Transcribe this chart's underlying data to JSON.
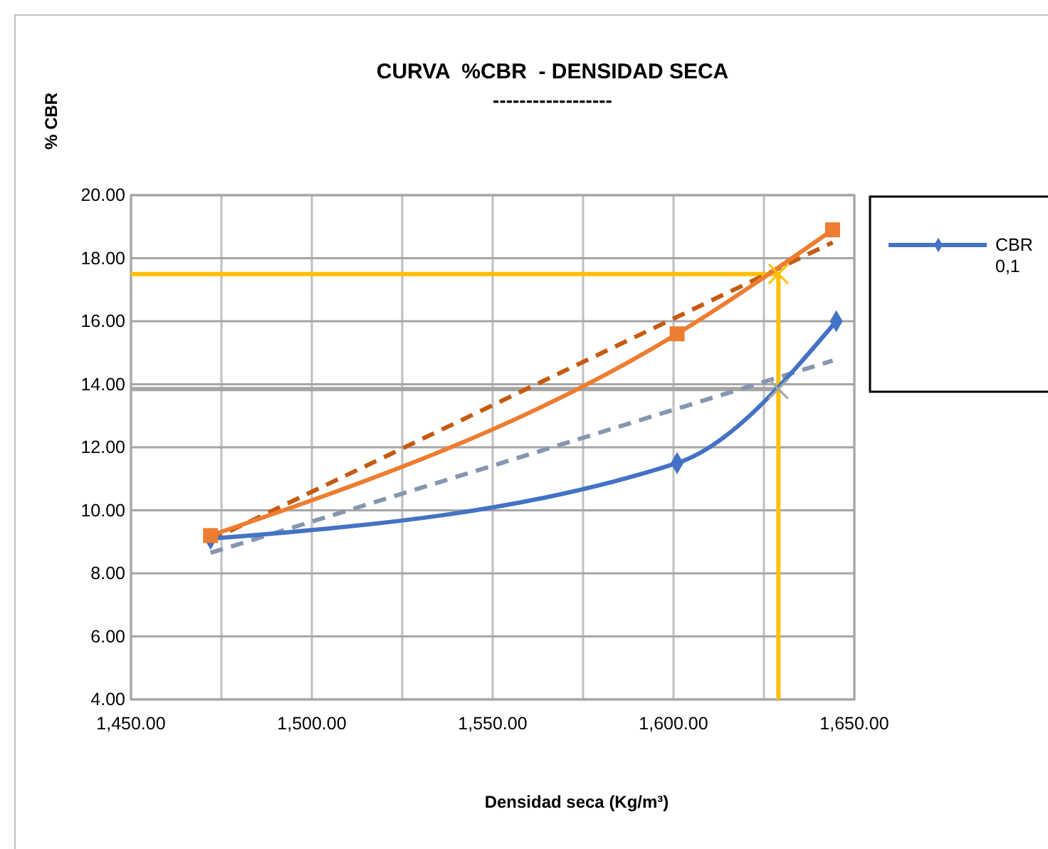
{
  "chart_data": {
    "type": "line",
    "title": "CURVA  %CBR  - DENSIDAD SECA",
    "subtitle": "------------------",
    "xlabel": "Densidad seca (Kg/m³)",
    "ylabel": "% CBR",
    "xlim": [
      1450,
      1650
    ],
    "xticks": [
      {
        "value": 1450,
        "label": "1,450.00"
      },
      {
        "value": 1475,
        "label": null
      },
      {
        "value": 1500,
        "label": "1,500.00"
      },
      {
        "value": 1525,
        "label": null
      },
      {
        "value": 1550,
        "label": "1,550.00"
      },
      {
        "value": 1575,
        "label": null
      },
      {
        "value": 1600,
        "label": "1,600.00"
      },
      {
        "value": 1625,
        "label": null
      },
      {
        "value": 1650,
        "label": "1,650.00"
      }
    ],
    "ylim": [
      4,
      20
    ],
    "yticks": [
      {
        "value": 4,
        "label": "4.00"
      },
      {
        "value": 6,
        "label": "6.00"
      },
      {
        "value": 8,
        "label": "8.00"
      },
      {
        "value": 10,
        "label": "10.00"
      },
      {
        "value": 12,
        "label": "12.00"
      },
      {
        "value": 14,
        "label": "14.00"
      },
      {
        "value": 16,
        "label": "16.00"
      },
      {
        "value": 18,
        "label": "18.00"
      },
      {
        "value": 20,
        "label": "20.00"
      }
    ],
    "grid": true,
    "legend": "right",
    "series": [
      {
        "x": [
          1450,
          1629,
          1629
        ],
        "values": [
          17.5,
          17.5,
          4
        ],
        "color": "#ffc000",
        "marker": "none",
        "line_style": "solid"
      },
      {
        "x": [
          1450,
          1629
        ],
        "values": [
          13.85,
          13.85
        ],
        "color": "#a5a5a5",
        "marker": "none",
        "line_style": "solid"
      },
      {
        "x": [
          1472,
          1644
        ],
        "values": [
          9.05,
          18.5
        ],
        "color": "#c55a11",
        "marker": "none",
        "line_style": "dashed"
      },
      {
        "x": [
          1472,
          1644
        ],
        "values": [
          8.65,
          14.75
        ],
        "color": "#8497b0",
        "marker": "none",
        "line_style": "dashed"
      },
      {
        "name": "CBR 0,1",
        "x": [
          1472,
          1601,
          1645
        ],
        "values": [
          9.1,
          11.5,
          16.0
        ],
        "color": "#4472c4",
        "marker": "diamond",
        "line_style": "solid"
      },
      {
        "x": [
          1472,
          1601,
          1644
        ],
        "values": [
          9.2,
          15.6,
          18.9
        ],
        "color": "#ed7d31",
        "marker": "square",
        "line_style": "solid"
      },
      {
        "type": "scatter",
        "x": [
          1629,
          1629
        ],
        "values": [
          17.5,
          13.85
        ],
        "colors": [
          "#ffc000",
          "#a5a5a5"
        ],
        "marker": "cross"
      }
    ]
  }
}
